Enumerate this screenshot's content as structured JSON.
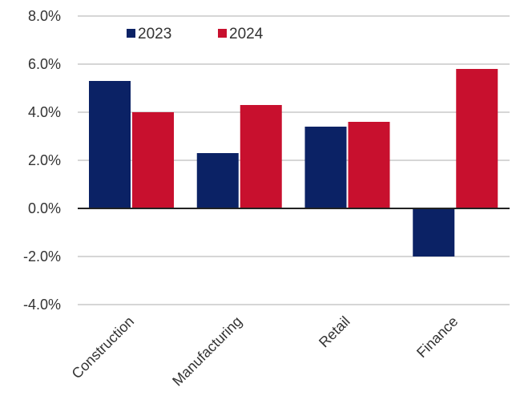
{
  "chart_data": {
    "type": "bar",
    "categories": [
      "Construction",
      "Manufacturing",
      "Retail",
      "Finance"
    ],
    "series": [
      {
        "name": "2023",
        "color": "#0b2265",
        "values": [
          5.3,
          2.3,
          3.4,
          -2.0
        ]
      },
      {
        "name": "2024",
        "color": "#c8102e",
        "values": [
          4.0,
          4.3,
          3.6,
          5.8
        ]
      }
    ],
    "y_ticks": [
      "-4.0%",
      "-2.0%",
      "0.0%",
      "2.0%",
      "4.0%",
      "6.0%",
      "8.0%"
    ],
    "ylim": [
      -4,
      8
    ],
    "grid": true,
    "legend_position": "top-left",
    "title": "",
    "xlabel": "",
    "ylabel": ""
  }
}
